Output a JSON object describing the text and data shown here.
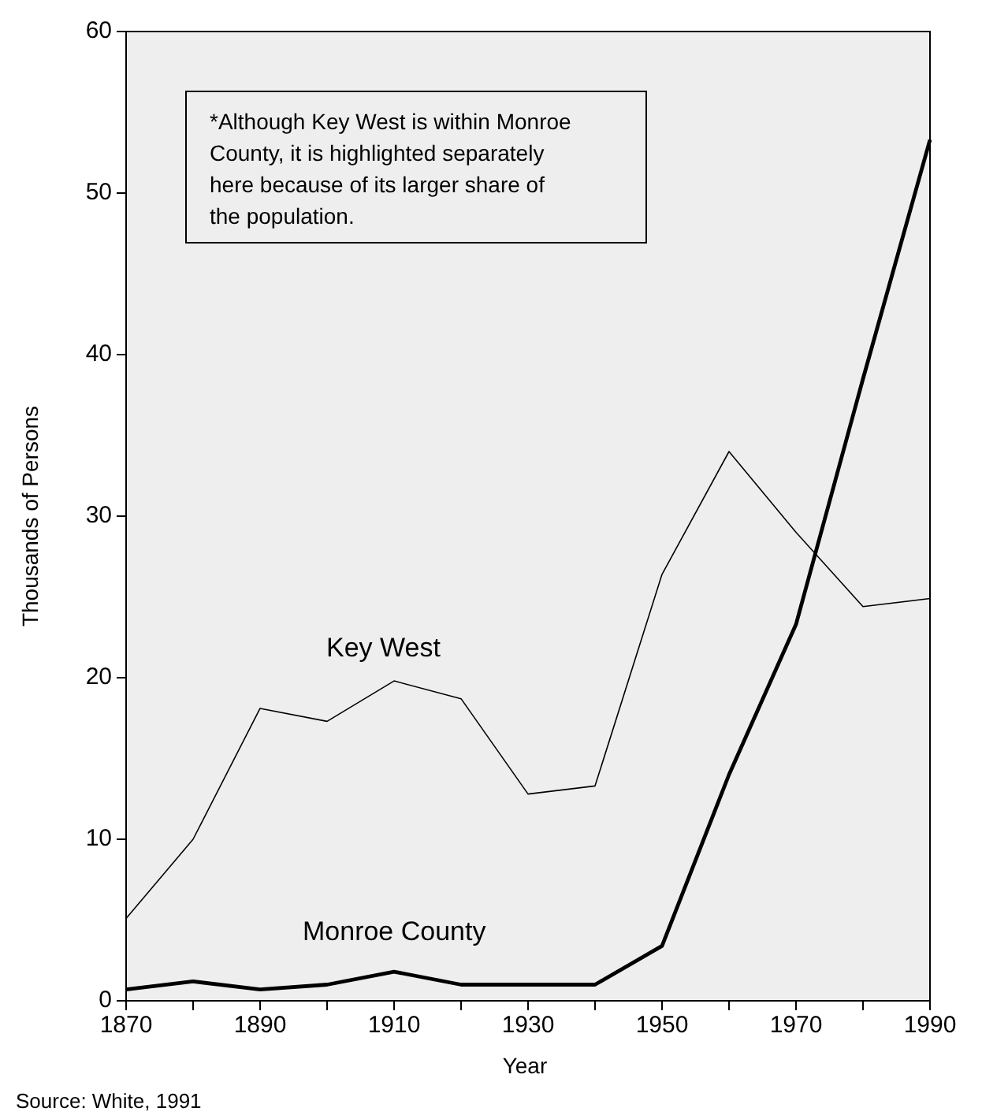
{
  "chart_data": {
    "type": "line",
    "xlabel": "Year",
    "ylabel": "Thousands of Persons",
    "x": [
      1870,
      1880,
      1890,
      1900,
      1910,
      1920,
      1930,
      1940,
      1950,
      1960,
      1970,
      1980,
      1990
    ],
    "series": [
      {
        "name": "Key West",
        "color": "#000000",
        "values": [
          5.1,
          10,
          18.1,
          17.3,
          19.8,
          18.7,
          12.8,
          13.3,
          26.4,
          34,
          29,
          24.4,
          24.9
        ]
      },
      {
        "name": "Monroe County",
        "color": "#000000",
        "values": [
          0.7,
          1.2,
          0.7,
          1.0,
          1.8,
          1.0,
          1.0,
          1.0,
          3.4,
          14,
          23.3,
          38.5,
          53.3
        ]
      }
    ],
    "xlim": [
      1870,
      1990
    ],
    "xticks": [
      1870,
      {
        "value": 1880,
        "label": null
      },
      1890,
      {
        "value": 1900,
        "label": null
      },
      1910,
      {
        "value": 1920,
        "label": null
      },
      1930,
      {
        "value": 1940,
        "label": null
      },
      1950,
      {
        "value": 1960,
        "label": null
      },
      1970,
      {
        "value": 1980,
        "label": null
      },
      1990
    ],
    "ylim": [
      0,
      60
    ],
    "yticks": [
      0,
      10,
      20,
      30,
      40,
      50,
      60
    ],
    "grid": false,
    "marker": "none",
    "line_style": "solid",
    "annotations": [
      "*Although Key West is within Monroe County, it is highlighted separately here because of its larger share of the population.",
      "Source: White, 1991"
    ]
  }
}
